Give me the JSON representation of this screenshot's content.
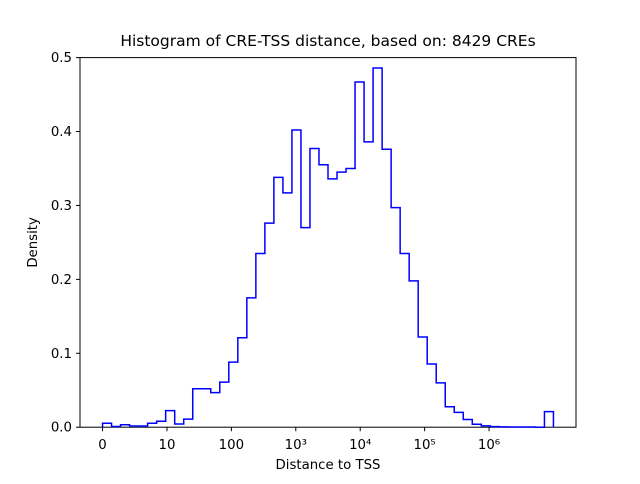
{
  "figure": {
    "background": "#ffffff"
  },
  "chart_data": {
    "type": "bar",
    "subtype": "step-histogram",
    "title": "Histogram of CRE-TSS distance, based on: 8429 CREs",
    "xlabel": "Distance to TSS",
    "ylabel": "Density",
    "sample_count": "8429",
    "line_color": "#0000ff",
    "axis_color": "#000000",
    "grid": false,
    "legend_position": "none",
    "x_scale_note": "x values are log10 of distance; bins uniform in log space",
    "xlim_log10": [
      -0.35,
      7.35
    ],
    "ylim": [
      0.0,
      0.5
    ],
    "bin_start_log10": 0.0,
    "bin_width_log10": 0.14,
    "bin_count": 50,
    "densities": [
      0.0053,
      0.001,
      0.0034,
      0.0016,
      0.0016,
      0.0053,
      0.008,
      0.0225,
      0.0043,
      0.011,
      0.052,
      0.052,
      0.0467,
      0.061,
      0.088,
      0.121,
      0.175,
      0.235,
      0.276,
      0.338,
      0.317,
      0.402,
      0.27,
      0.377,
      0.355,
      0.336,
      0.345,
      0.35,
      0.467,
      0.386,
      0.486,
      0.376,
      0.297,
      0.235,
      0.198,
      0.122,
      0.0855,
      0.06,
      0.0277,
      0.02,
      0.0105,
      0.004,
      0.0018,
      0.0008,
      0.0004,
      0.0002,
      0.0002,
      0.0002,
      0.0,
      0.021
    ],
    "x_ticks": [
      {
        "value_log10": 0,
        "label": "0"
      },
      {
        "value_log10": 1,
        "label": "10"
      },
      {
        "value_log10": 2,
        "label": "100"
      },
      {
        "value_log10": 3,
        "label": "10³"
      },
      {
        "value_log10": 4,
        "label": "10⁴"
      },
      {
        "value_log10": 5,
        "label": "10⁵"
      },
      {
        "value_log10": 6,
        "label": "10⁶"
      }
    ],
    "y_ticks": [
      {
        "value": 0.0,
        "label": "0.0"
      },
      {
        "value": 0.1,
        "label": "0.1"
      },
      {
        "value": 0.2,
        "label": "0.2"
      },
      {
        "value": 0.3,
        "label": "0.3"
      },
      {
        "value": 0.4,
        "label": "0.4"
      },
      {
        "value": 0.5,
        "label": "0.5"
      }
    ]
  }
}
